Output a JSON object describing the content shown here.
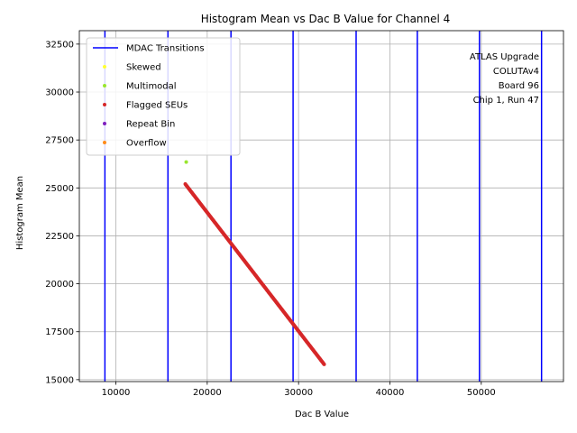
{
  "chart_data": {
    "type": "scatter",
    "title": "Histogram Mean vs Dac B Value for Channel 4",
    "xlabel": "Dac B Value",
    "ylabel": "Histogram Mean",
    "xlim": [
      6000,
      59000
    ],
    "ylim": [
      14900,
      33200
    ],
    "x_ticks": [
      10000,
      20000,
      30000,
      40000,
      50000
    ],
    "x_tick_labels": [
      "10000",
      "20000",
      "30000",
      "40000",
      "50000"
    ],
    "y_ticks": [
      15000,
      17500,
      20000,
      22500,
      25000,
      27500,
      30000,
      32500
    ],
    "y_tick_labels": [
      "15000",
      "17500",
      "20000",
      "22500",
      "25000",
      "27500",
      "30000",
      "32500"
    ],
    "grid": true,
    "legend_position": "top-left",
    "mdac_transitions": [
      8800,
      15700,
      22600,
      29400,
      36300,
      43000,
      49800,
      56600
    ],
    "mdac_color": "#0000ff",
    "series": [
      {
        "name": "MDAC Transitions",
        "marker": "line",
        "color": "#0000ff",
        "points": []
      },
      {
        "name": "Skewed",
        "marker": "dot",
        "color": "#ffff33",
        "points": []
      },
      {
        "name": "Multimodal",
        "marker": "dot",
        "color": "#99e62e",
        "points": [
          [
            17700,
            26350
          ]
        ]
      },
      {
        "name": "Flagged SEUs",
        "marker": "dot",
        "color": "#d62728",
        "line_from": [
          17600,
          25200
        ],
        "line_to": [
          32800,
          15800
        ]
      },
      {
        "name": "Repeat Bin",
        "marker": "dot",
        "color": "#7f1fbf",
        "points": []
      },
      {
        "name": "Overflow",
        "marker": "dot",
        "color": "#ff8c1a",
        "points": []
      }
    ],
    "annotation": [
      "ATLAS Upgrade",
      "COLUTAv4",
      "Board 96",
      "Chip 1, Run 47"
    ]
  }
}
